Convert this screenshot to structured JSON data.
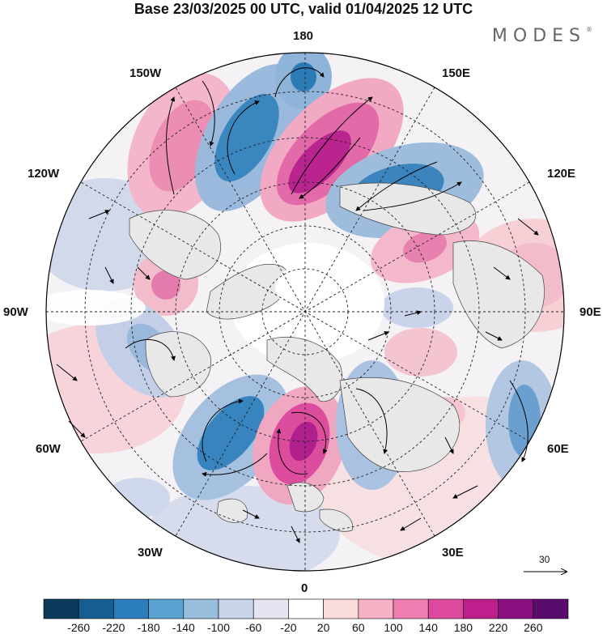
{
  "title": "Base 23/03/2025 00 UTC, valid 01/04/2025 12 UTC",
  "brand": "MODES",
  "brand_mark": "®",
  "longitude_labels": {
    "lon_180": "180",
    "lon_150e": "150E",
    "lon_120e": "120E",
    "lon_90e": "90E",
    "lon_60e": "60E",
    "lon_30e": "30E",
    "lon_0": "0",
    "lon_30w": "30W",
    "lon_60w": "60W",
    "lon_90w": "90W",
    "lon_120w": "120W",
    "lon_150w": "150W"
  },
  "reference_vector": {
    "value": "30"
  },
  "colorbar": {
    "labels": [
      "-260",
      "-220",
      "-180",
      "-140",
      "-100",
      "-60",
      "-20",
      "20",
      "60",
      "100",
      "140",
      "180",
      "220",
      "260"
    ],
    "colors": [
      "#0b3a5c",
      "#155e8f",
      "#2a7fba",
      "#5aa2d0",
      "#98bedd",
      "#c7d4ea",
      "#e6e4f1",
      "#ffffff",
      "#fbdcdc",
      "#f6b1c4",
      "#ee7fb0",
      "#dd4a9d",
      "#bd1f8c",
      "#8c1080",
      "#5a0c6c"
    ]
  },
  "map": {
    "projection": "north-polar-stereographic",
    "field": "anomaly shading with wind vectors",
    "anomaly_centers": [
      {
        "lon": 180,
        "lat": 55,
        "value": -200
      },
      {
        "lon": 165,
        "lat": 50,
        "value": 230
      },
      {
        "lon": 140,
        "lat": 45,
        "value": -180
      },
      {
        "lon": -165,
        "lat": 45,
        "value": -180
      },
      {
        "lon": -145,
        "lat": 40,
        "value": 150
      },
      {
        "lon": -100,
        "lat": 55,
        "value": 100
      },
      {
        "lon": -70,
        "lat": 45,
        "value": -120
      },
      {
        "lon": -45,
        "lat": 50,
        "value": -200
      },
      {
        "lon": -20,
        "lat": 55,
        "value": 230
      },
      {
        "lon": 15,
        "lat": 55,
        "value": -170
      },
      {
        "lon": 80,
        "lat": 50,
        "value": -80
      },
      {
        "lon": 110,
        "lat": 55,
        "value": 130
      },
      {
        "lon": 50,
        "lat": 40,
        "value": -120
      },
      {
        "lon": 100,
        "lat": 35,
        "value": 100
      }
    ]
  }
}
